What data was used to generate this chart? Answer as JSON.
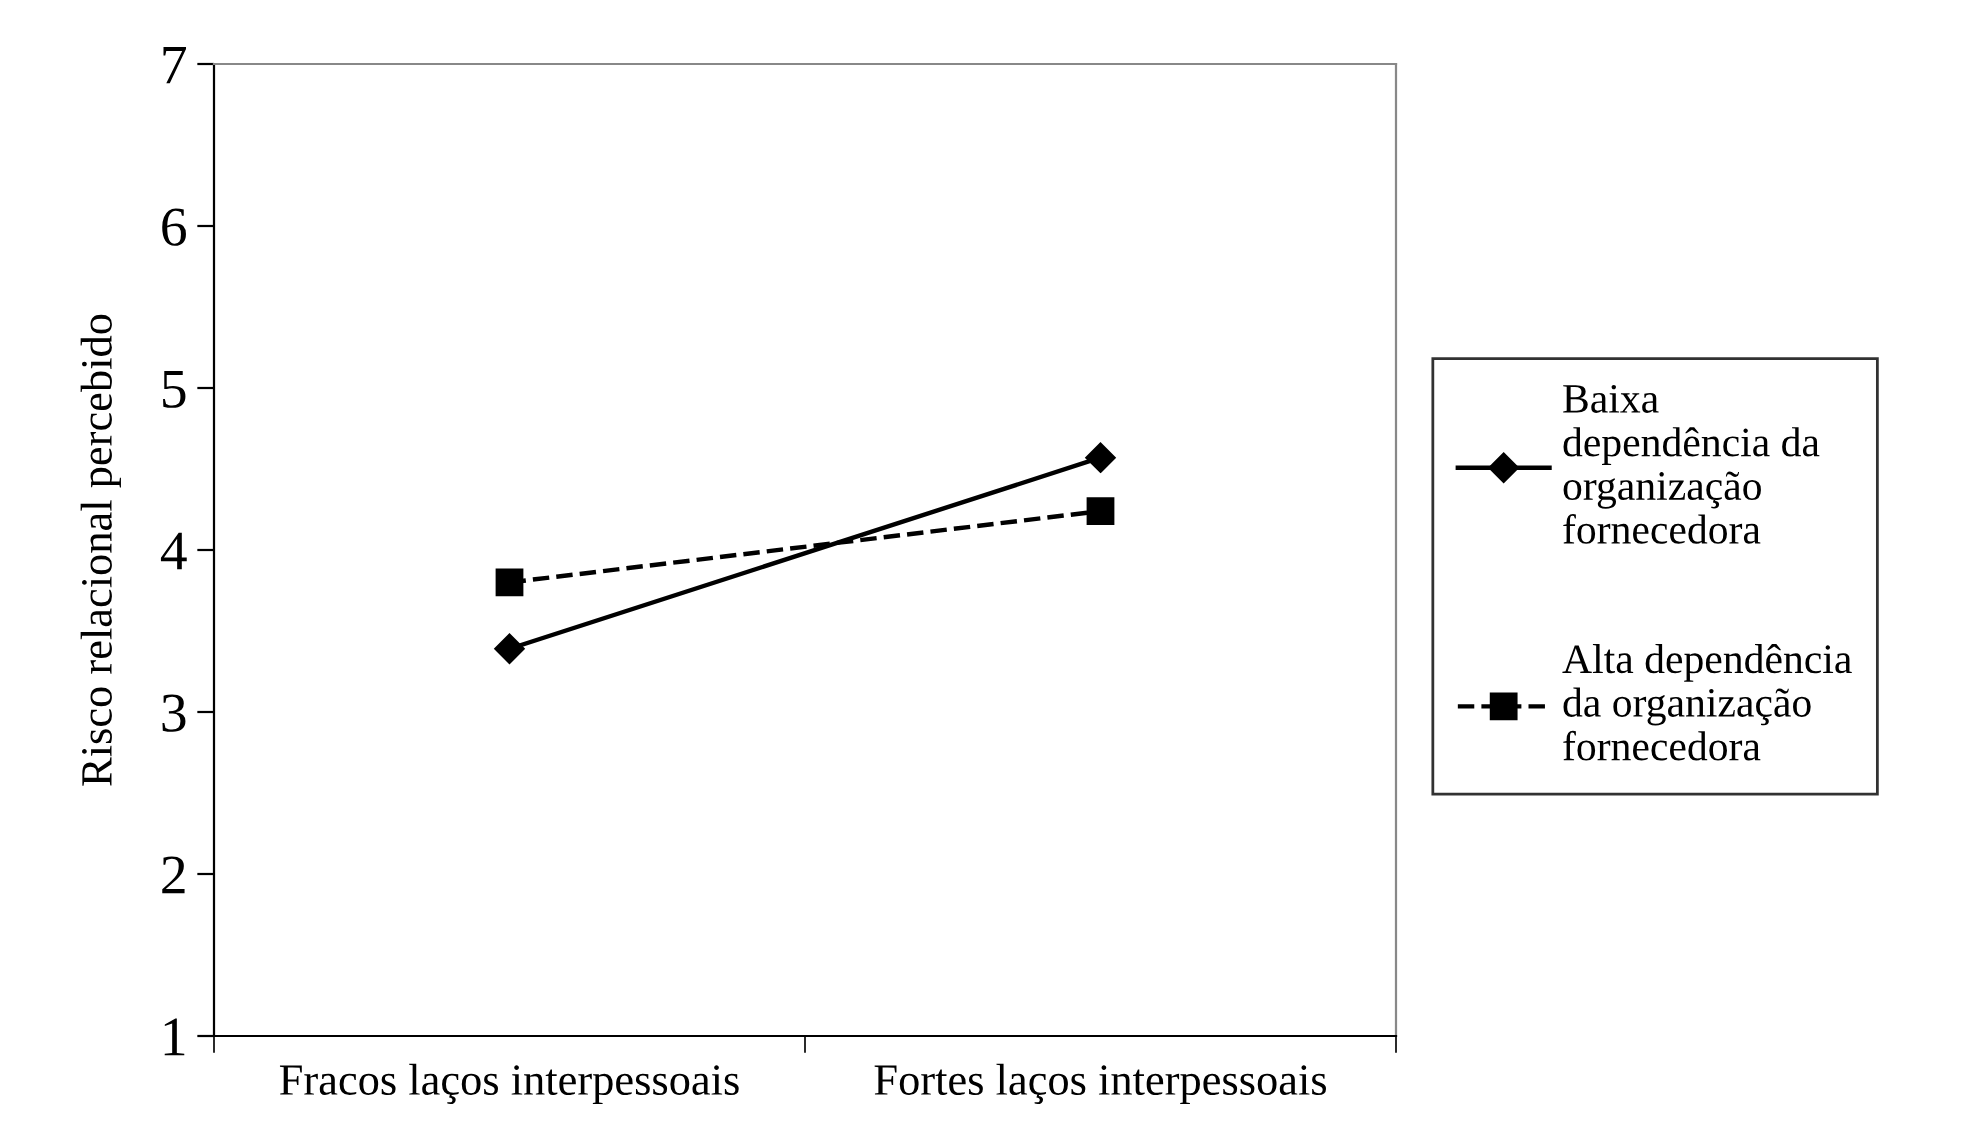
{
  "chart_data": {
    "type": "line",
    "ylabel": "Risco relacional percebido",
    "categories": [
      "Fracos laços interpessoais",
      "Fortes laços interpessoais"
    ],
    "ylim": [
      1,
      7
    ],
    "yticks": [
      1,
      2,
      3,
      4,
      5,
      6,
      7
    ],
    "grid": false,
    "legend": "right",
    "series": [
      {
        "name": "Baixa\ndependência da\norganização\nfornecedora",
        "color": "#000000",
        "values": [
          3.39,
          4.57
        ],
        "marker": "diamond",
        "line_style": "solid"
      },
      {
        "name": "Alta dependência\nda organização\nfornecedora",
        "color": "#000000",
        "values": [
          3.8,
          4.24
        ],
        "marker": "square",
        "line_style": "dashed"
      }
    ]
  }
}
